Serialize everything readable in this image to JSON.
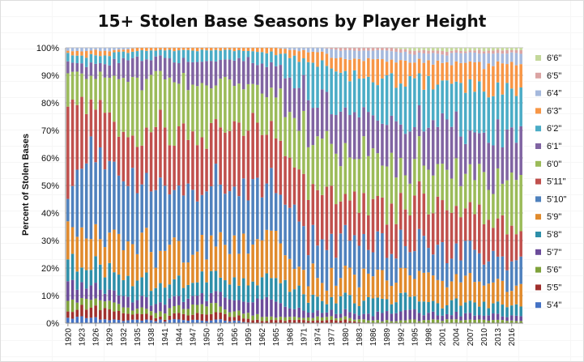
{
  "chart_data": {
    "type": "bar",
    "stacked": "percent",
    "title": "15+ Stolen Base Seasons by Player Height",
    "xlabel": "",
    "ylabel": "Percent of Stolen Bases",
    "ylim": [
      0,
      100
    ],
    "yticks": [
      "0%",
      "10%",
      "20%",
      "30%",
      "40%",
      "50%",
      "60%",
      "70%",
      "80%",
      "90%",
      "100%"
    ],
    "x_start": 1920,
    "x_end": 2018,
    "xtick_labels": [
      "1920",
      "1923",
      "1926",
      "1929",
      "1932",
      "1935",
      "1938",
      "1941",
      "1944",
      "1947",
      "1950",
      "1953",
      "1956",
      "1959",
      "1962",
      "1965",
      "1968",
      "1971",
      "1974",
      "1977",
      "1980",
      "1983",
      "1986",
      "1989",
      "1992",
      "1995",
      "1998",
      "2001",
      "2004",
      "2007",
      "2010",
      "2013",
      "2016"
    ],
    "legend_position": "right",
    "series_order": [
      "5'4\"",
      "5'5\"",
      "5'6\"",
      "5'7\"",
      "5'8\"",
      "5'9\"",
      "5'10\"",
      "5'11\"",
      "6'0\"",
      "6'1\"",
      "6'2\"",
      "6'3\"",
      "6'4\"",
      "6'5\"",
      "6'6\""
    ],
    "legend_order": [
      "6'6\"",
      "6'5\"",
      "6'4\"",
      "6'3\"",
      "6'2\"",
      "6'1\"",
      "6'0\"",
      "5'11\"",
      "5'10\"",
      "5'9\"",
      "5'8\"",
      "5'7\"",
      "5'6\"",
      "5'5\"",
      "5'4\""
    ],
    "colors": {
      "5'4\"": "#4472c4",
      "5'5\"": "#a0302d",
      "5'6\"": "#7fa23b",
      "5'7\"": "#6b4c9a",
      "5'8\"": "#2e8fa9",
      "5'9\"": "#e08a2c",
      "5'10\"": "#4f81bd",
      "5'11\"": "#c0504d",
      "6'0\"": "#9bbb59",
      "6'1\"": "#8064a2",
      "6'2\"": "#4bacc6",
      "6'3\"": "#f79646",
      "6'4\"": "#a5b9dd",
      "6'5\"": "#dba4a3",
      "6'6\"": "#c4d89b"
    },
    "anchors": [
      {
        "year": 1920,
        "values": [
          2,
          3,
          4,
          6,
          8,
          14,
          12,
          30,
          12,
          4,
          3,
          1,
          1,
          0,
          0
        ]
      },
      {
        "year": 1925,
        "values": [
          2,
          4,
          3,
          5,
          7,
          12,
          30,
          18,
          9,
          4,
          3,
          2,
          1,
          0,
          0
        ]
      },
      {
        "year": 1930,
        "values": [
          1,
          3,
          3,
          4,
          8,
          11,
          25,
          20,
          14,
          6,
          3,
          1,
          1,
          0,
          0
        ]
      },
      {
        "year": 1935,
        "values": [
          1,
          2,
          2,
          3,
          6,
          12,
          20,
          17,
          25,
          8,
          3,
          1,
          0,
          0,
          0
        ]
      },
      {
        "year": 1940,
        "values": [
          1,
          1,
          2,
          3,
          7,
          12,
          24,
          22,
          17,
          7,
          3,
          1,
          0,
          0,
          0
        ]
      },
      {
        "year": 1945,
        "values": [
          1,
          2,
          2,
          4,
          7,
          12,
          22,
          22,
          17,
          7,
          3,
          1,
          0,
          0,
          0
        ]
      },
      {
        "year": 1950,
        "values": [
          1,
          2,
          4,
          3,
          6,
          10,
          20,
          20,
          18,
          10,
          5,
          1,
          0,
          0,
          0
        ]
      },
      {
        "year": 1955,
        "values": [
          1,
          2,
          2,
          4,
          7,
          15,
          23,
          19,
          16,
          7,
          3,
          1,
          0,
          0,
          0
        ]
      },
      {
        "year": 1960,
        "values": [
          0,
          1,
          2,
          6,
          6,
          13,
          22,
          22,
          14,
          9,
          4,
          1,
          0,
          0,
          0
        ]
      },
      {
        "year": 1965,
        "values": [
          0,
          1,
          1,
          5,
          8,
          13,
          17,
          18,
          15,
          14,
          6,
          2,
          0,
          0,
          0
        ]
      },
      {
        "year": 1970,
        "values": [
          0,
          1,
          1,
          3,
          6,
          9,
          16,
          17,
          20,
          14,
          9,
          3,
          1,
          0,
          0
        ]
      },
      {
        "year": 1975,
        "values": [
          0,
          1,
          1,
          2,
          4,
          7,
          14,
          20,
          18,
          14,
          13,
          4,
          2,
          0,
          0
        ]
      },
      {
        "year": 1980,
        "values": [
          0,
          1,
          1,
          2,
          5,
          8,
          12,
          16,
          18,
          15,
          12,
          6,
          3,
          1,
          0
        ]
      },
      {
        "year": 1985,
        "values": [
          0,
          0,
          1,
          2,
          5,
          9,
          11,
          15,
          18,
          15,
          13,
          7,
          3,
          1,
          0
        ]
      },
      {
        "year": 1990,
        "values": [
          0,
          0,
          1,
          3,
          5,
          9,
          11,
          14,
          16,
          16,
          14,
          7,
          3,
          1,
          0
        ]
      },
      {
        "year": 1995,
        "values": [
          0,
          0,
          1,
          3,
          5,
          8,
          11,
          14,
          15,
          15,
          16,
          7,
          3,
          1,
          1
        ]
      },
      {
        "year": 2000,
        "values": [
          0,
          0,
          1,
          2,
          4,
          8,
          11,
          14,
          16,
          15,
          16,
          8,
          3,
          1,
          1
        ]
      },
      {
        "year": 2005,
        "values": [
          0,
          0,
          1,
          2,
          4,
          8,
          11,
          13,
          17,
          15,
          15,
          9,
          3,
          1,
          1
        ]
      },
      {
        "year": 2010,
        "values": [
          0,
          0,
          1,
          2,
          4,
          8,
          10,
          13,
          16,
          15,
          15,
          10,
          4,
          1,
          1
        ]
      },
      {
        "year": 2015,
        "values": [
          0,
          0,
          1,
          2,
          4,
          7,
          10,
          12,
          17,
          16,
          15,
          10,
          4,
          1,
          1
        ]
      },
      {
        "year": 2018,
        "values": [
          0,
          0,
          1,
          2,
          4,
          7,
          11,
          12,
          17,
          16,
          14,
          10,
          4,
          1,
          1
        ]
      }
    ],
    "variation_amplitude": 0.35
  }
}
